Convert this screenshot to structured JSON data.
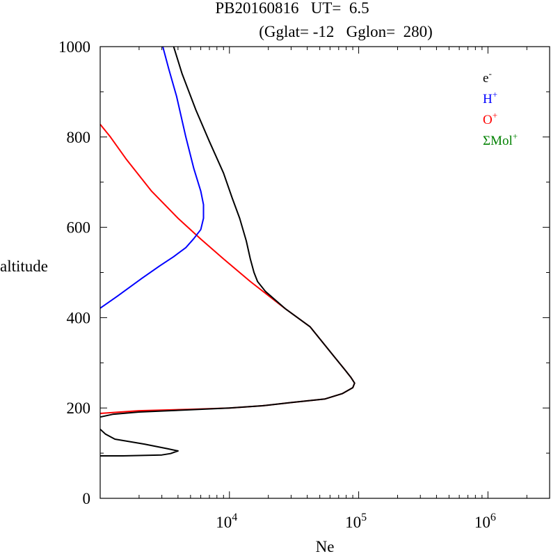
{
  "chart_data": {
    "type": "line",
    "title_line1": "PB20160816   UT=  6.5",
    "title_line2": "(Gglat= -12   Gglon=  280)",
    "xlabel": "Ne",
    "ylabel": "altitude",
    "x_scale": "log",
    "xlim": [
      1000,
      3000000
    ],
    "ylim": [
      0,
      1000
    ],
    "y_ticks": [
      {
        "value": 0,
        "label": "0"
      },
      {
        "value": 200,
        "label": "200"
      },
      {
        "value": 400,
        "label": "400"
      },
      {
        "value": 600,
        "label": "600"
      },
      {
        "value": 800,
        "label": "800"
      },
      {
        "value": 1000,
        "label": "1000"
      }
    ],
    "x_ticks": [
      {
        "value": 10000,
        "base": "10",
        "exp": "4"
      },
      {
        "value": 100000,
        "base": "10",
        "exp": "5"
      },
      {
        "value": 1000000,
        "base": "10",
        "exp": "6"
      }
    ],
    "legend": [
      {
        "base": "e",
        "sup": "-",
        "color": "#000000"
      },
      {
        "base": "H",
        "sup": "+",
        "color": "#0000ff"
      },
      {
        "base": "O",
        "sup": "+",
        "color": "#ff0000"
      },
      {
        "base": "ΣMol",
        "sup": "+",
        "color": "#008000"
      }
    ],
    "legend_position": "top-right",
    "series": [
      {
        "key": "oplus",
        "color": "#ff0000",
        "points": [
          [
            1000,
            188
          ],
          [
            1250,
            190
          ],
          [
            2000,
            194
          ],
          [
            5000,
            197
          ],
          [
            10000,
            200
          ],
          [
            18000,
            205
          ],
          [
            30000,
            212
          ],
          [
            55000,
            220
          ],
          [
            75000,
            232
          ],
          [
            90000,
            245
          ],
          [
            93000,
            255
          ],
          [
            87000,
            268
          ],
          [
            78000,
            285
          ],
          [
            62000,
            320
          ],
          [
            42000,
            380
          ],
          [
            27000,
            420
          ],
          [
            14500,
            480
          ],
          [
            9000,
            530
          ],
          [
            6000,
            574
          ],
          [
            4000,
            620
          ],
          [
            2500,
            680
          ],
          [
            1600,
            750
          ],
          [
            1200,
            800
          ],
          [
            1000,
            828
          ]
        ]
      },
      {
        "key": "hplus",
        "color": "#0000ff",
        "points": [
          [
            1000,
            421
          ],
          [
            1350,
            447
          ],
          [
            2100,
            487
          ],
          [
            2900,
            515
          ],
          [
            3700,
            535
          ],
          [
            4600,
            555
          ],
          [
            5300,
            575
          ],
          [
            6000,
            595
          ],
          [
            6300,
            620
          ],
          [
            6300,
            650
          ],
          [
            6000,
            680
          ],
          [
            5300,
            730
          ],
          [
            4600,
            800
          ],
          [
            3900,
            890
          ],
          [
            3400,
            950
          ],
          [
            3050,
            1000
          ]
        ]
      },
      {
        "key": "electrons",
        "color": "#000000",
        "points": [
          [
            1000,
            94
          ],
          [
            1500,
            94
          ],
          [
            3000,
            96
          ],
          [
            3500,
            99
          ],
          [
            4000,
            105
          ],
          [
            3300,
            110
          ],
          [
            2200,
            120
          ],
          [
            1300,
            131
          ],
          [
            1100,
            142
          ],
          [
            1000,
            153
          ],
          [
            null,
            null
          ],
          [
            1000,
            180
          ],
          [
            1250,
            186
          ],
          [
            2000,
            191
          ],
          [
            5000,
            196
          ],
          [
            10000,
            200
          ],
          [
            18000,
            205
          ],
          [
            30000,
            212
          ],
          [
            55000,
            220
          ],
          [
            75000,
            232
          ],
          [
            90000,
            245
          ],
          [
            93000,
            255
          ],
          [
            87000,
            268
          ],
          [
            78000,
            285
          ],
          [
            62000,
            320
          ],
          [
            42000,
            380
          ],
          [
            27000,
            420
          ],
          [
            19000,
            458
          ],
          [
            16500,
            480
          ],
          [
            15500,
            500
          ],
          [
            14500,
            530
          ],
          [
            13500,
            570
          ],
          [
            12000,
            620
          ],
          [
            10500,
            665
          ],
          [
            9000,
            720
          ],
          [
            7000,
            790
          ],
          [
            5500,
            860
          ],
          [
            4300,
            940
          ],
          [
            3700,
            1000
          ]
        ]
      }
    ]
  }
}
